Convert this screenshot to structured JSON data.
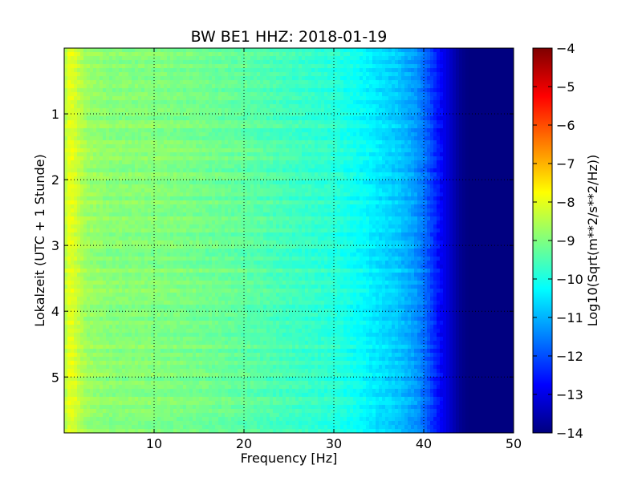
{
  "chart_data": {
    "type": "heatmap",
    "title": "BW BE1 HHZ: 2018-01-19",
    "xlabel": "Frequency [Hz]",
    "ylabel": "Lokalzeit (UTC + 1 Stunde)",
    "colorbar_label": "Log10(Sqrt(m**2/s**2/Hz))",
    "colormap": "jet",
    "xlim": [
      0,
      50
    ],
    "ylim": [
      5.85,
      0
    ],
    "x_ticks": [
      10,
      20,
      30,
      40,
      50
    ],
    "y_ticks": [
      1,
      2,
      3,
      4,
      5
    ],
    "color_range": [
      -14,
      -4
    ],
    "colorbar_ticks": [
      -4,
      -5,
      -6,
      -7,
      -8,
      -9,
      -10,
      -11,
      -12,
      -13,
      -14
    ],
    "grid": true,
    "frequency_profile": {
      "frequency_hz": [
        0.0,
        0.5,
        1.0,
        1.5,
        2.5,
        5,
        10,
        15,
        20,
        25,
        30,
        33,
        35,
        37,
        39,
        40,
        41,
        42,
        43,
        44,
        45,
        50
      ],
      "log10_psd": [
        -8.6,
        -8.0,
        -8.05,
        -8.3,
        -8.7,
        -8.9,
        -8.95,
        -9.1,
        -9.3,
        -9.6,
        -9.85,
        -10.2,
        -10.5,
        -10.75,
        -11.2,
        -11.6,
        -12.2,
        -12.8,
        -13.3,
        -13.8,
        -14.0,
        -14.0
      ]
    }
  }
}
